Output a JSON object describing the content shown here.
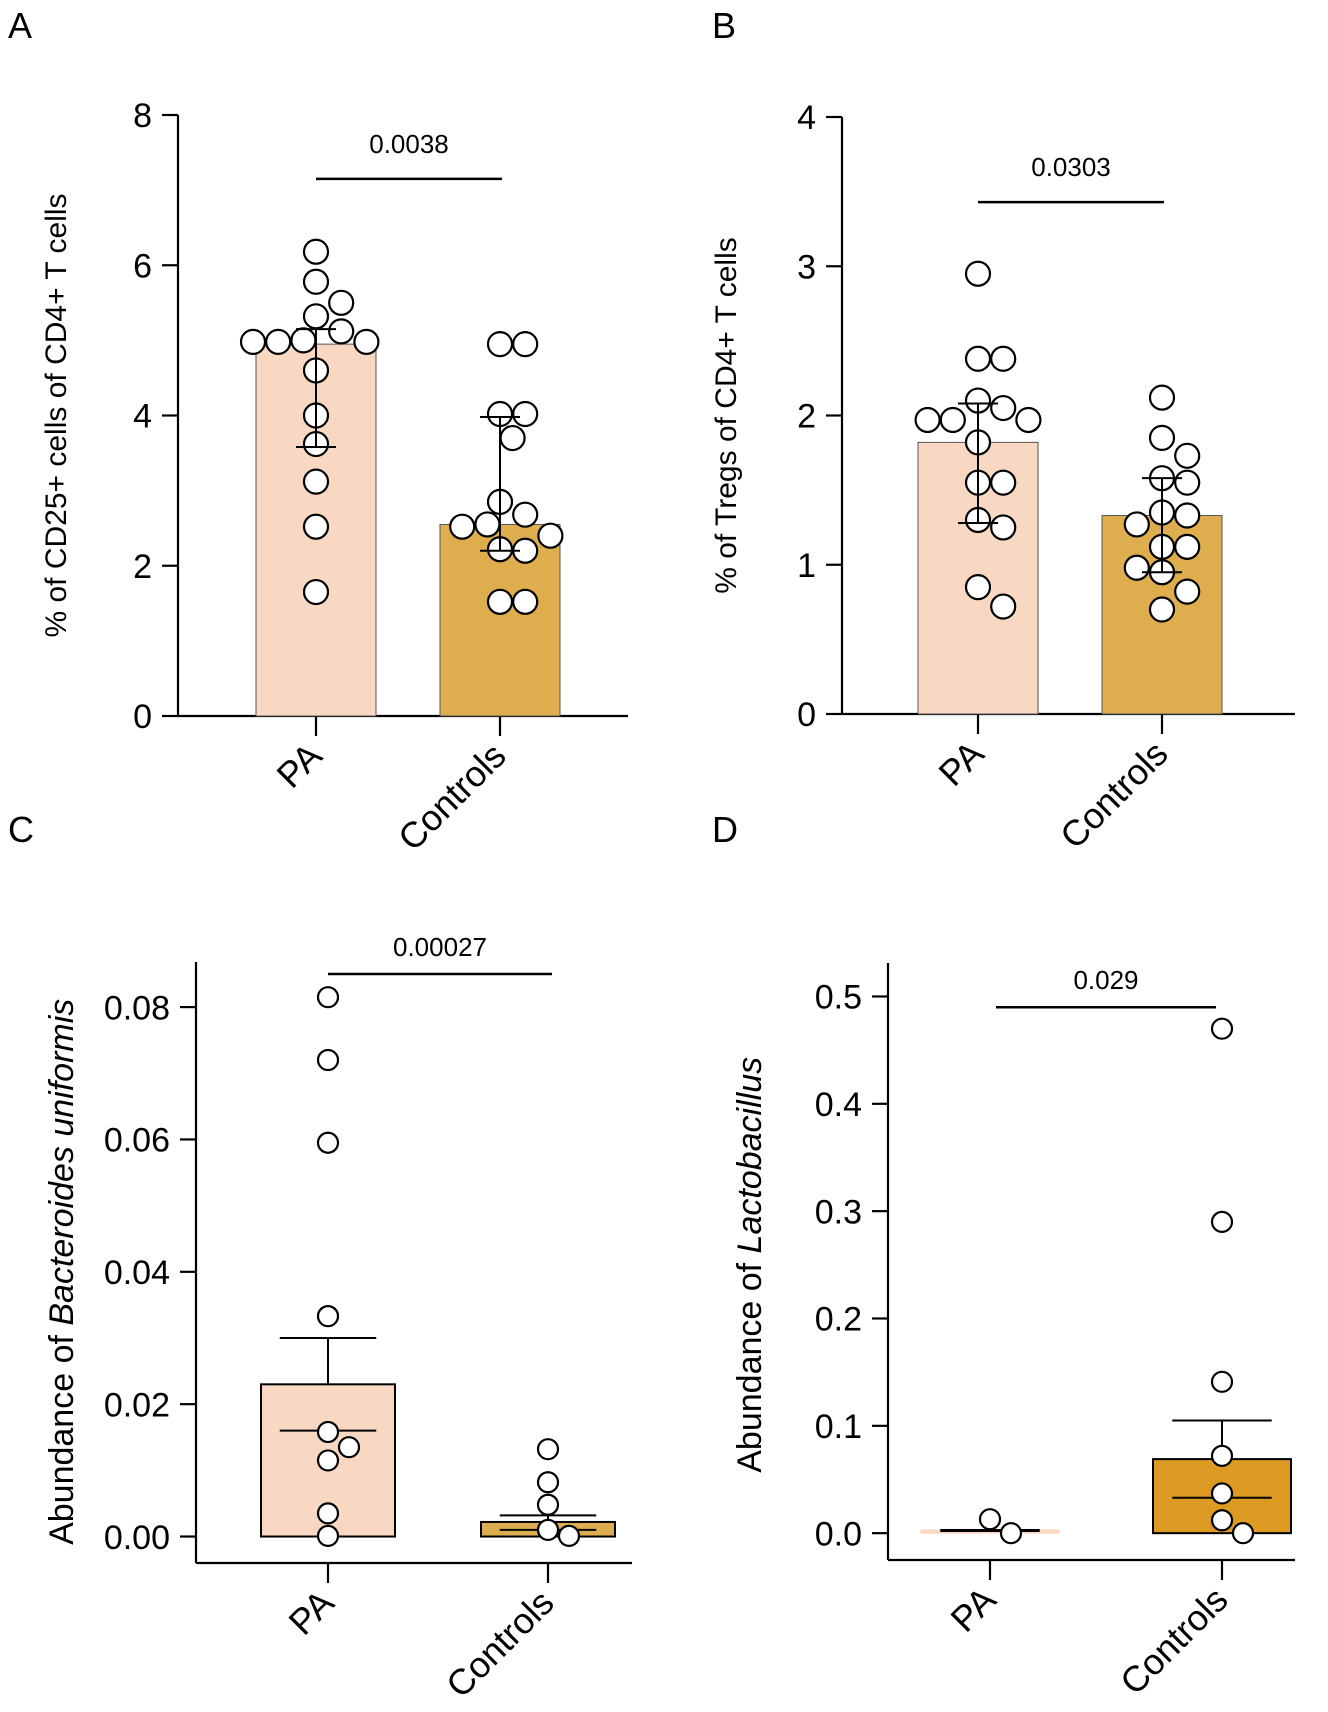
{
  "chart_data": [
    {
      "panel": "A",
      "type": "bar",
      "ylabel": "% of CD25+ cells of CD4+ T cells",
      "ylim": [
        0,
        8
      ],
      "yticks": [
        0,
        2,
        4,
        6,
        8
      ],
      "ytick_labels": [
        "0",
        "2",
        "4",
        "6",
        "8"
      ],
      "categories": [
        "PA",
        "Controls"
      ],
      "bars": [
        4.95,
        2.55
      ],
      "error": [
        {
          "low": 3.58,
          "high": 5.15
        },
        {
          "low": 2.2,
          "high": 3.98
        }
      ],
      "points": [
        [
          6.18,
          5.78,
          5.5,
          5.32,
          5.12,
          5.0,
          4.98,
          4.98,
          4.98,
          4.6,
          4.0,
          3.62,
          3.12,
          2.52,
          1.65
        ],
        [
          4.95,
          4.95,
          4.02,
          4.02,
          3.7,
          2.85,
          2.68,
          2.55,
          2.52,
          2.4,
          2.22,
          2.2,
          1.52,
          1.52
        ]
      ],
      "significance": {
        "label": "0.0038",
        "y": 7.15
      }
    },
    {
      "panel": "B",
      "type": "bar",
      "ylabel": "% of Tregs of CD4+ T cells",
      "ylim": [
        0,
        4
      ],
      "yticks": [
        0,
        1,
        2,
        3,
        4
      ],
      "ytick_labels": [
        "0",
        "1",
        "2",
        "3",
        "4"
      ],
      "categories": [
        "PA",
        "Controls"
      ],
      "bars": [
        1.82,
        1.33
      ],
      "error": [
        {
          "low": 1.28,
          "high": 2.08
        },
        {
          "low": 0.95,
          "high": 1.58
        }
      ],
      "points": [
        [
          2.95,
          2.38,
          2.38,
          2.1,
          2.05,
          1.97,
          1.97,
          1.97,
          1.82,
          1.55,
          1.55,
          1.3,
          1.25,
          0.85,
          0.72
        ],
        [
          2.12,
          1.85,
          1.73,
          1.58,
          1.55,
          1.35,
          1.33,
          1.27,
          1.12,
          1.12,
          0.98,
          0.95,
          0.82,
          0.7
        ]
      ],
      "significance": {
        "label": "0.0303",
        "y": 3.43
      }
    },
    {
      "panel": "C",
      "type": "box",
      "ylabel_prefix": "Abundance of ",
      "ylabel_italic": "Bacteroides uniformis",
      "ylim": [
        -0.004,
        0.085
      ],
      "yticks": [
        0,
        0.02,
        0.04,
        0.06,
        0.08
      ],
      "ytick_labels": [
        "0.00",
        "0.02",
        "0.04",
        "0.06",
        "0.08"
      ],
      "categories": [
        "PA",
        "Controls"
      ],
      "boxes": [
        {
          "q1": 0.0,
          "median": 0.016,
          "q3": 0.023,
          "whisker_high": 0.03
        },
        {
          "q1": 0.0,
          "median": 0.001,
          "q3": 0.0022,
          "whisker_high": 0.0032
        }
      ],
      "points": [
        [
          0.0815,
          0.072,
          0.0595,
          0.0333,
          0.0158,
          0.0135,
          0.0115,
          0.0035,
          0.0001
        ],
        [
          0.0132,
          0.0082,
          0.0048,
          0.001,
          0.0001
        ]
      ],
      "significance": {
        "label": "0.00027",
        "y": 0.085
      }
    },
    {
      "panel": "D",
      "type": "box",
      "ylabel_prefix": "Abundance of ",
      "ylabel_italic": "Lactobacillus",
      "ylim": [
        -0.025,
        0.52
      ],
      "yticks": [
        0,
        0.1,
        0.2,
        0.3,
        0.4,
        0.5
      ],
      "ytick_labels": [
        "0.0",
        "0.1",
        "0.2",
        "0.3",
        "0.4",
        "0.5"
      ],
      "categories": [
        "PA",
        "Controls"
      ],
      "boxes": [
        {
          "q1": 0.0,
          "median": 0.002,
          "q3": 0.003,
          "whisker_high": 0.003
        },
        {
          "q1": 0.0,
          "median": 0.033,
          "q3": 0.069,
          "whisker_high": 0.105
        }
      ],
      "points": [
        [
          0.013,
          0.0
        ],
        [
          0.47,
          0.29,
          0.141,
          0.072,
          0.037,
          0.012,
          0.0
        ]
      ],
      "significance": {
        "label": "0.029",
        "y": 0.49
      }
    }
  ],
  "colors": {
    "pa_fill": "#f8d8c2",
    "controls_fill_ab": "#deae4e",
    "controls_fill_c": "#ddad52",
    "controls_fill_d": "#dc9a22",
    "stroke": "#000000",
    "point_fill": "#ffffff"
  }
}
